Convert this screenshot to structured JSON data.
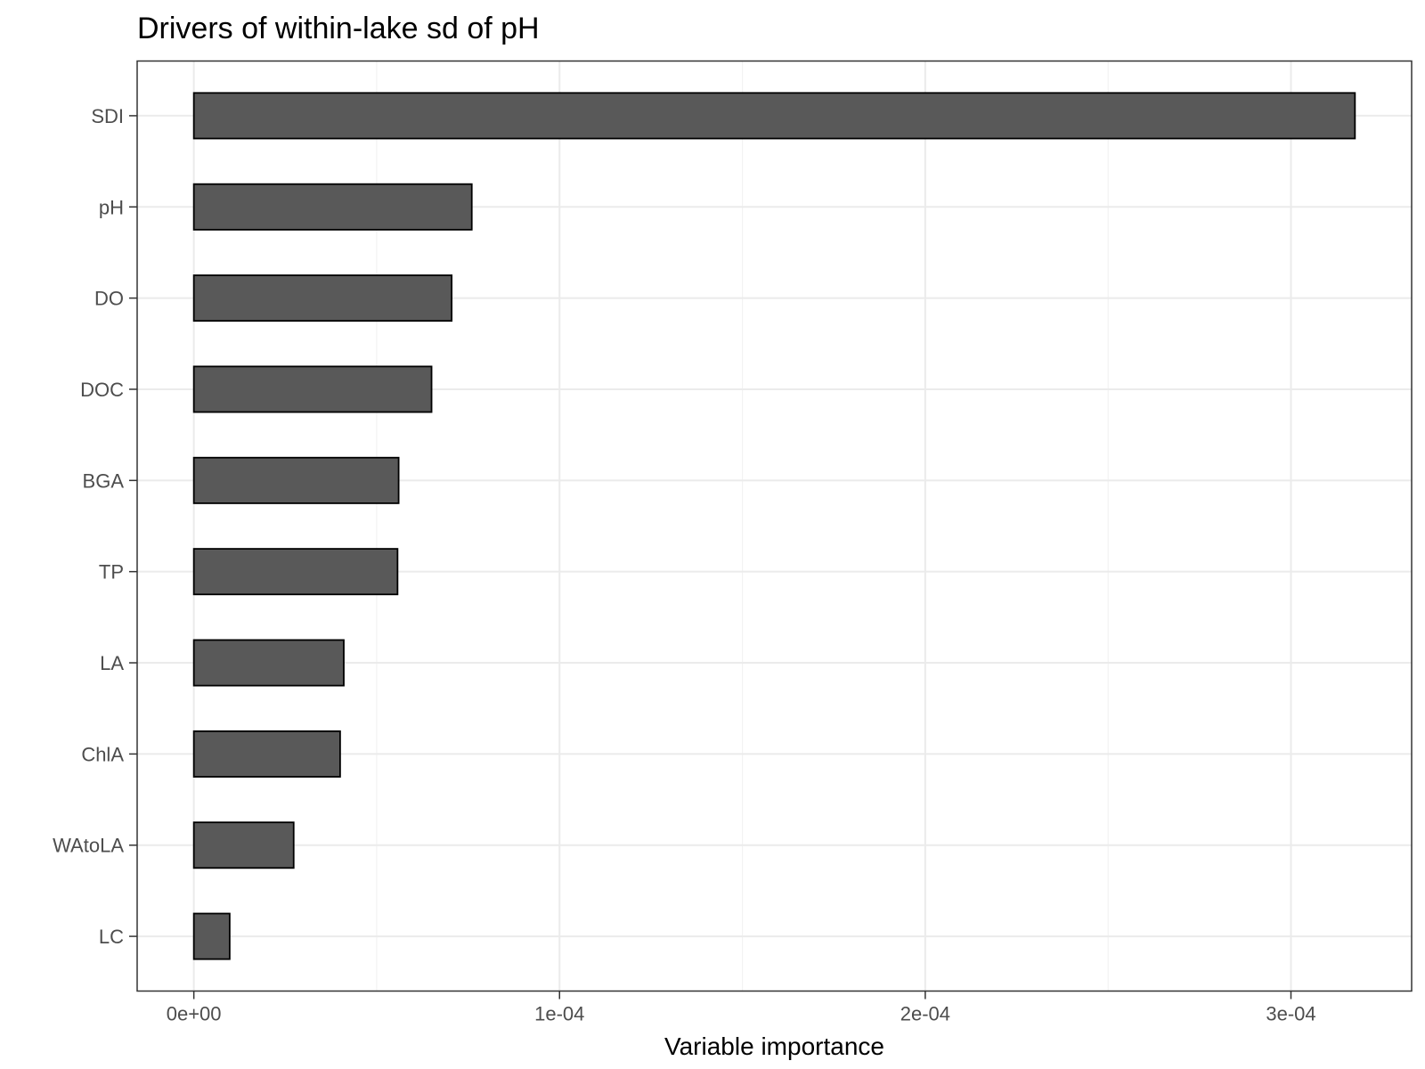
{
  "chart_data": {
    "type": "bar",
    "orientation": "horizontal",
    "title": "Drivers of within-lake sd of pH",
    "xlabel": "Variable importance",
    "ylabel": "",
    "categories": [
      "SDI",
      "pH",
      "DO",
      "DOC",
      "BGA",
      "TP",
      "LA",
      "ChlA",
      "WAtoLA",
      "LC"
    ],
    "values": [
      0.0003175,
      7.6e-05,
      7.05e-05,
      6.5e-05,
      5.6e-05,
      5.57e-05,
      4.1e-05,
      4e-05,
      2.73e-05,
      9.8e-06
    ],
    "xlim": [
      -1.55e-05,
      0.000333
    ],
    "x_ticks": [
      0,
      0.0001,
      0.0002,
      0.0003
    ],
    "x_tick_labels": [
      "0e+00",
      "1e-04",
      "2e-04",
      "3e-04"
    ],
    "grid": true,
    "legend": "none",
    "colors": {
      "bar_fill": "#595959",
      "bar_stroke": "#000000"
    }
  }
}
